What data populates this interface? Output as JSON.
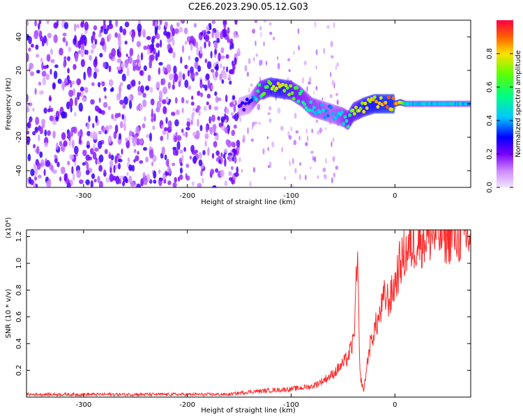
{
  "title": "C2E6.2023.290.05.12.G03",
  "chart_data": [
    {
      "type": "heatmap",
      "xlabel": "Height of straight line (km)",
      "ylabel": "Frequency (Hz)",
      "xlim": [
        -355,
        73
      ],
      "ylim": [
        -50,
        50
      ],
      "xticks": [
        -300,
        -200,
        -100,
        0
      ],
      "yticks": [
        -40,
        -20,
        0,
        20,
        40
      ],
      "colorbar": {
        "label": "Normalized spectral amplitude",
        "range": [
          0.0,
          1.0
        ],
        "ticks": [
          0.0,
          0.2,
          0.4,
          0.6,
          0.8
        ]
      },
      "noise_region_km": [
        -355,
        -150
      ],
      "signal_track": {
        "x": [
          -150,
          -140,
          -130,
          -120,
          -110,
          -100,
          -90,
          -80,
          -70,
          -60,
          -50,
          -45,
          -40,
          -30,
          -20,
          -10,
          0,
          5,
          10,
          20,
          40,
          60,
          73
        ],
        "frequency": [
          -2,
          0,
          8,
          10,
          9,
          8,
          4,
          -2,
          -4,
          -6,
          -8,
          -10,
          -5,
          -2,
          0,
          0,
          0,
          1,
          0,
          0,
          0,
          0,
          0
        ],
        "amplitude": [
          0.25,
          0.3,
          0.6,
          0.75,
          0.8,
          0.7,
          0.55,
          0.5,
          0.45,
          0.4,
          0.5,
          0.6,
          0.7,
          0.8,
          0.85,
          0.9,
          0.9,
          0.9,
          0.45,
          0.45,
          0.45,
          0.45,
          0.45
        ]
      }
    },
    {
      "type": "line",
      "xlabel": "Height of straight line (km)",
      "ylabel": "SNR (10 * v/v)",
      "multiplier": "(x10⁴)",
      "xlim": [
        -355,
        73
      ],
      "ylim": [
        0.0,
        1.25
      ],
      "xticks": [
        -300,
        -200,
        -100,
        0
      ],
      "yticks": [
        0.2,
        0.4,
        0.6,
        0.8,
        1.0,
        1.2
      ],
      "series": [
        {
          "color": "#ff2a2a",
          "x": [
            -355,
            -300,
            -250,
            -200,
            -160,
            -140,
            -120,
            -100,
            -80,
            -70,
            -60,
            -50,
            -45,
            -40,
            -38,
            -36,
            -34,
            -32,
            -30,
            -25,
            -20,
            -15,
            -10,
            -5,
            0,
            5,
            10,
            20,
            30,
            40,
            50,
            60,
            73
          ],
          "y": [
            0.02,
            0.02,
            0.02,
            0.02,
            0.02,
            0.04,
            0.05,
            0.06,
            0.08,
            0.12,
            0.17,
            0.25,
            0.3,
            0.42,
            0.7,
            1.05,
            0.2,
            0.1,
            0.05,
            0.35,
            0.5,
            0.6,
            0.75,
            0.72,
            0.85,
            1.0,
            1.08,
            1.16,
            1.2,
            1.22,
            1.21,
            1.21,
            1.2
          ]
        }
      ]
    }
  ]
}
